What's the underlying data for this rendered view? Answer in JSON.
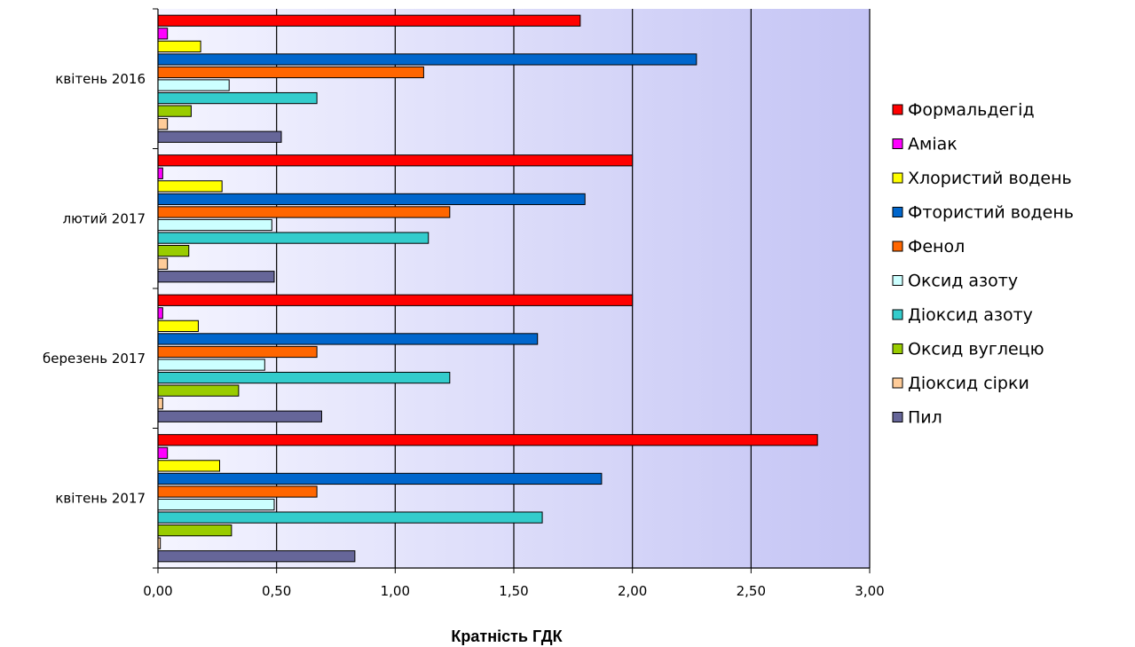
{
  "chart_data": {
    "type": "bar",
    "orientation": "horizontal",
    "categories": [
      "квітень 2016",
      "лютий 2017",
      "березень 2017",
      "квітень 2017"
    ],
    "xlabel": "Кратність ГДК",
    "xlim": [
      0,
      3
    ],
    "x_ticks": [
      "0,00",
      "0,50",
      "1,00",
      "1,50",
      "2,00",
      "2,50",
      "3,00"
    ],
    "grid": true,
    "legend_position": "right",
    "series": [
      {
        "name": "Формальдегід",
        "color": "#ff0000",
        "values": [
          1.78,
          2.0,
          2.0,
          2.78
        ]
      },
      {
        "name": "Аміак",
        "color": "#ff00ff",
        "values": [
          0.04,
          0.02,
          0.02,
          0.04
        ]
      },
      {
        "name": "Хлористий водень",
        "color": "#ffff00",
        "values": [
          0.18,
          0.27,
          0.17,
          0.26
        ]
      },
      {
        "name": "Фтористий водень",
        "color": "#0066cc",
        "values": [
          2.27,
          1.8,
          1.6,
          1.87
        ]
      },
      {
        "name": "Фенол",
        "color": "#ff6600",
        "values": [
          1.12,
          1.23,
          0.67,
          0.67
        ]
      },
      {
        "name": "Оксид азоту",
        "color": "#ccffff",
        "values": [
          0.3,
          0.48,
          0.45,
          0.49
        ]
      },
      {
        "name": "Діоксид азоту",
        "color": "#33cccc",
        "values": [
          0.67,
          1.14,
          1.23,
          1.62
        ]
      },
      {
        "name": "Оксид вуглецю",
        "color": "#99cc00",
        "values": [
          0.14,
          0.13,
          0.34,
          0.31
        ]
      },
      {
        "name": "Діоксид сірки",
        "color": "#ffcc99",
        "values": [
          0.04,
          0.04,
          0.02,
          0.01
        ]
      },
      {
        "name": "Пил",
        "color": "#666699",
        "values": [
          0.52,
          0.49,
          0.69,
          0.83
        ]
      }
    ]
  }
}
